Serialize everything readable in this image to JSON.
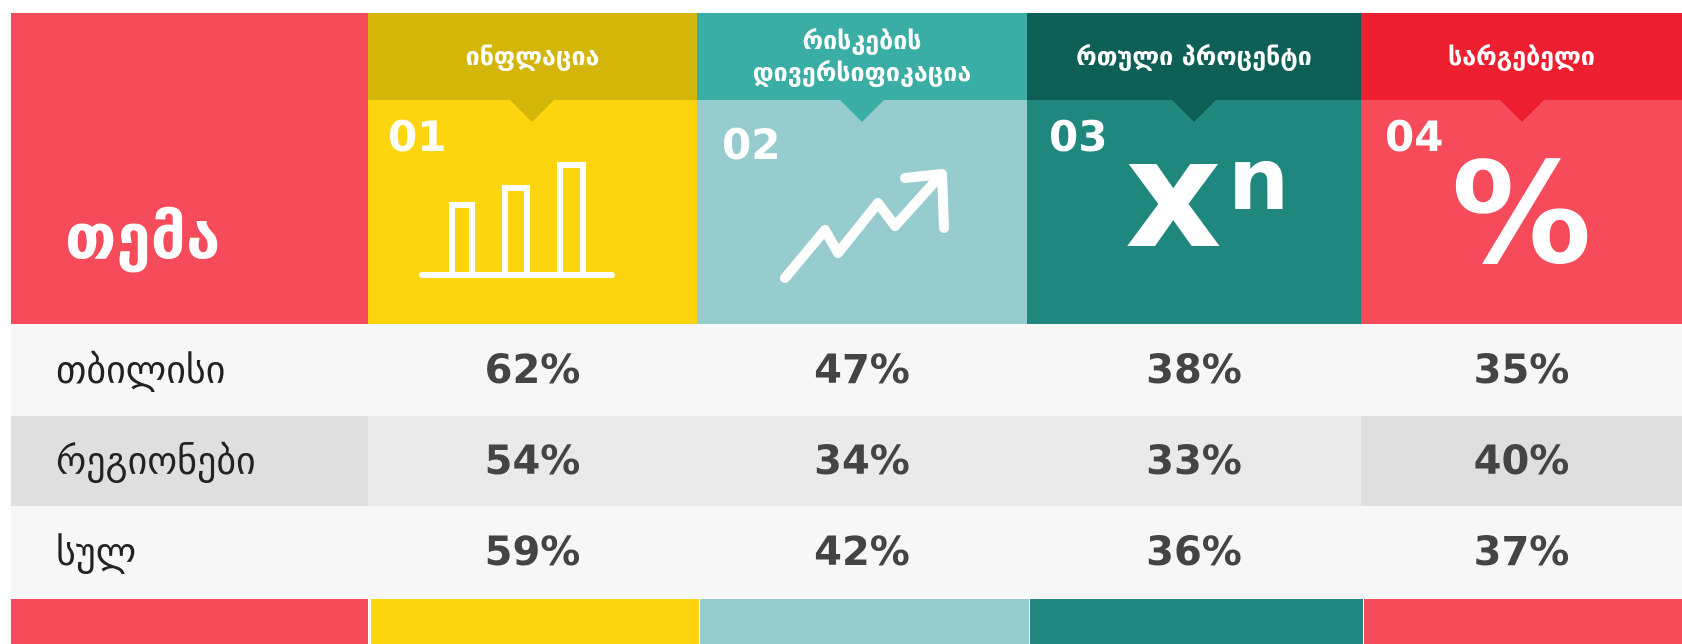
{
  "header": {
    "topic": "თემა"
  },
  "columns": [
    {
      "title": "ინფლაცია",
      "number": "01"
    },
    {
      "title": "რისკების დივერსიფიკაცია",
      "number": "02"
    },
    {
      "title": "რთული პროცენტი",
      "number": "03",
      "icon": {
        "base": "x",
        "exponent": "n"
      }
    },
    {
      "title": "სარგებელი",
      "number": "04",
      "icon": "%"
    }
  ],
  "table": {
    "rows": [
      [
        "თბილისი",
        "62%",
        "47%",
        "38%",
        "35%"
      ],
      [
        "რეგიონები",
        "54%",
        "34%",
        "33%",
        "40%"
      ],
      [
        "სულ",
        "59%",
        "42%",
        "36%",
        "37%"
      ]
    ]
  }
}
